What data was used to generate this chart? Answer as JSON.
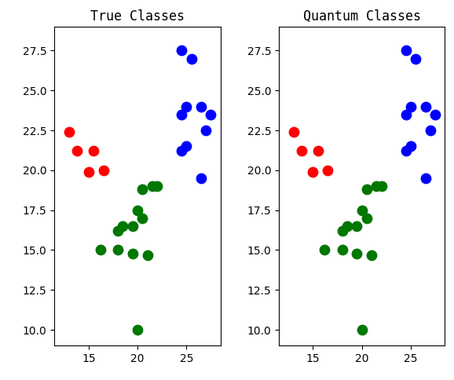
{
  "title_left": "True Classes",
  "title_right": "Quantum Classes",
  "xlim": [
    11.5,
    28.5
  ],
  "ylim": [
    9.0,
    29.0
  ],
  "xticks": [
    15,
    20,
    25
  ],
  "yticks": [
    10.0,
    12.5,
    15.0,
    17.5,
    20.0,
    22.5,
    25.0,
    27.5
  ],
  "marker_size": 80,
  "true_classes": {
    "red": [
      [
        13.0,
        22.4
      ],
      [
        13.8,
        21.2
      ],
      [
        15.5,
        21.2
      ],
      [
        15.0,
        19.9
      ],
      [
        16.5,
        20.0
      ]
    ],
    "blue": [
      [
        24.5,
        27.5
      ],
      [
        25.5,
        27.0
      ],
      [
        24.5,
        21.2
      ],
      [
        25.0,
        21.5
      ],
      [
        24.5,
        23.5
      ],
      [
        25.0,
        24.0
      ],
      [
        26.5,
        24.0
      ],
      [
        27.5,
        23.5
      ],
      [
        27.0,
        22.5
      ],
      [
        26.5,
        19.5
      ]
    ],
    "green": [
      [
        18.0,
        16.2
      ],
      [
        18.5,
        16.5
      ],
      [
        18.0,
        15.0
      ],
      [
        19.5,
        16.5
      ],
      [
        20.5,
        17.0
      ],
      [
        20.0,
        17.5
      ],
      [
        20.5,
        18.8
      ],
      [
        21.5,
        19.0
      ],
      [
        22.0,
        19.0
      ],
      [
        16.2,
        15.0
      ],
      [
        19.5,
        14.8
      ],
      [
        21.0,
        14.7
      ],
      [
        20.0,
        10.0
      ]
    ]
  },
  "quantum_classes": {
    "red": [
      [
        13.0,
        22.4
      ],
      [
        13.8,
        21.2
      ],
      [
        15.5,
        21.2
      ],
      [
        15.0,
        19.9
      ],
      [
        16.5,
        20.0
      ]
    ],
    "blue": [
      [
        24.5,
        27.5
      ],
      [
        25.5,
        27.0
      ],
      [
        24.5,
        21.2
      ],
      [
        25.0,
        21.5
      ],
      [
        24.5,
        23.5
      ],
      [
        25.0,
        24.0
      ],
      [
        26.5,
        24.0
      ],
      [
        27.5,
        23.5
      ],
      [
        27.0,
        22.5
      ],
      [
        26.5,
        19.5
      ]
    ],
    "green": [
      [
        18.0,
        16.2
      ],
      [
        18.5,
        16.5
      ],
      [
        18.0,
        15.0
      ],
      [
        19.5,
        16.5
      ],
      [
        20.5,
        17.0
      ],
      [
        20.0,
        17.5
      ],
      [
        20.5,
        18.8
      ],
      [
        21.5,
        19.0
      ],
      [
        22.0,
        19.0
      ],
      [
        16.2,
        15.0
      ],
      [
        19.5,
        14.8
      ],
      [
        21.0,
        14.7
      ],
      [
        20.0,
        10.0
      ]
    ]
  },
  "red_color": "#ff0000",
  "blue_color": "#0000ff",
  "green_color": "#007700",
  "background": "#ffffff",
  "title_fontsize": 12,
  "tick_fontsize": 10,
  "figsize": [
    5.78,
    4.84
  ],
  "dpi": 100
}
